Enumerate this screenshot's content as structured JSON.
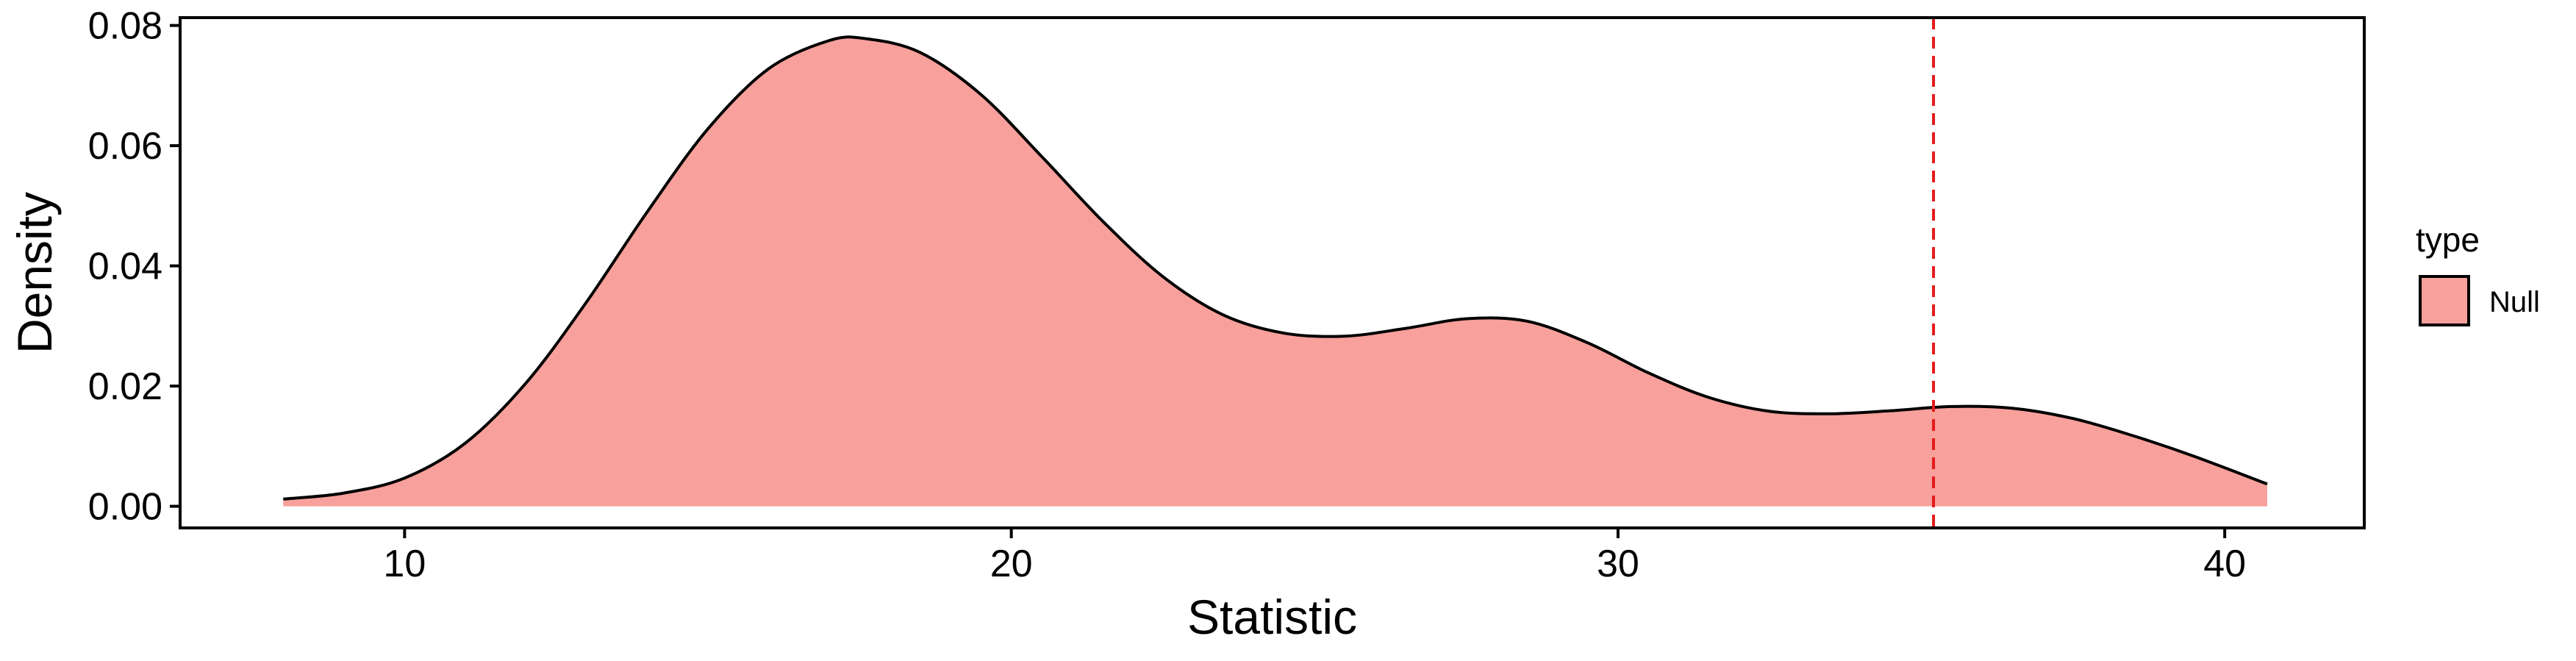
{
  "chart_data": {
    "type": "area",
    "xlabel": "Statistic",
    "ylabel": "Density",
    "xlim": [
      6.3,
      42.3
    ],
    "ylim": [
      -0.0036,
      0.0813
    ],
    "x_ticks": [
      10,
      20,
      30,
      40
    ],
    "x_tick_labels": [
      "10",
      "20",
      "30",
      "40"
    ],
    "y_ticks": [
      0,
      0.02,
      0.04,
      0.06,
      0.08
    ],
    "y_tick_labels": [
      "0.00",
      "0.02",
      "0.04",
      "0.06",
      "0.08"
    ],
    "grid": false,
    "legend": {
      "title": "type",
      "position": "right",
      "entries": [
        "Null"
      ]
    },
    "series": [
      {
        "name": "Null",
        "color": "#F8A09B",
        "line_color": "#000000",
        "x": [
          8.0,
          9.0,
          10.0,
          11.0,
          12.0,
          13.0,
          14.0,
          15.0,
          16.0,
          17.0,
          17.6,
          18.5,
          19.5,
          20.5,
          21.5,
          22.5,
          23.5,
          24.5,
          25.5,
          26.5,
          27.5,
          28.5,
          29.5,
          30.5,
          31.5,
          32.5,
          33.5,
          34.5,
          35.5,
          36.5,
          37.5,
          38.5,
          39.5,
          40.7
        ],
        "y": [
          0.0012,
          0.0022,
          0.0047,
          0.0105,
          0.0205,
          0.034,
          0.049,
          0.0628,
          0.0728,
          0.0775,
          0.0778,
          0.0755,
          0.0685,
          0.0582,
          0.0475,
          0.0382,
          0.0318,
          0.0288,
          0.0283,
          0.0296,
          0.0312,
          0.0308,
          0.0272,
          0.0222,
          0.0181,
          0.0158,
          0.0154,
          0.0159,
          0.0166,
          0.0163,
          0.0146,
          0.0117,
          0.0083,
          0.0037
        ]
      }
    ],
    "annotations": [
      {
        "type": "vline",
        "x": 35.2,
        "color": "#E41A1C",
        "style": "dashed"
      }
    ]
  }
}
